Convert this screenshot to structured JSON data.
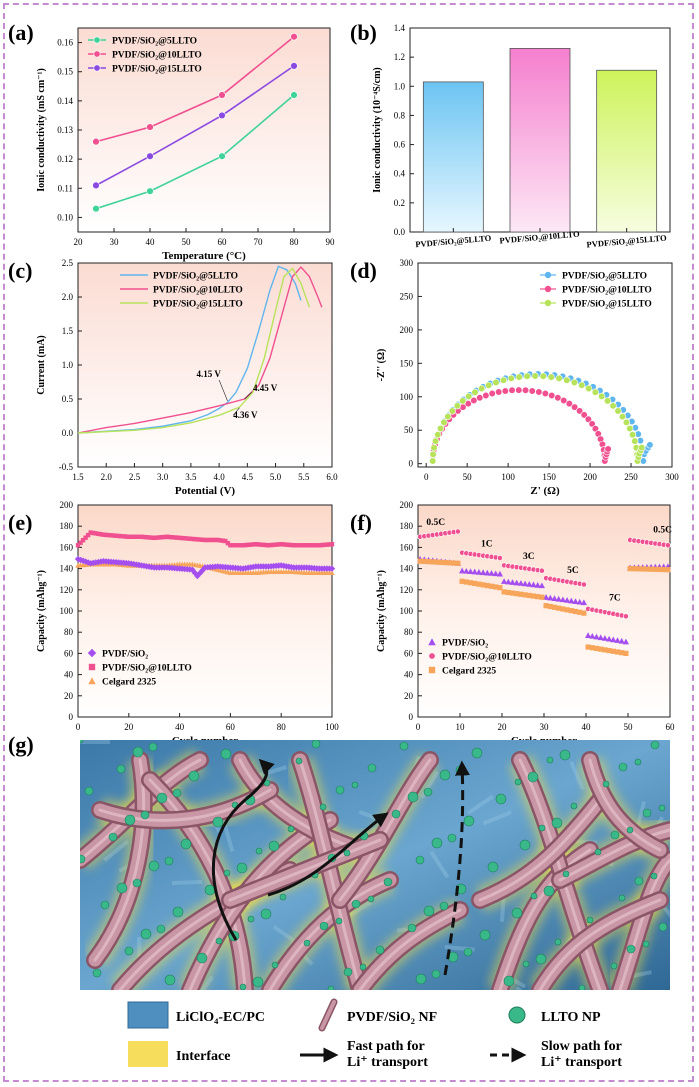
{
  "colors": {
    "frame": "#c58bd1",
    "green": "#3fd39a",
    "pink": "#f0508f",
    "purple": "#8a49e0",
    "blue": "#5fb6ee",
    "lime": "#b7e35a",
    "orange": "#f6a55a",
    "violet": "#a44ef0",
    "bar_blue": "#7ecdf5",
    "bar_pink": "#f99bd6",
    "bar_lime": "#d8f57a"
  },
  "legend": {
    "electrolyte": "LiClO₄-EC/PC",
    "nanofiber": "PVDF/SiO₂ NF",
    "nanoparticle": "LLTO NP",
    "interface": "Interface",
    "fast_path": "Fast path for\nLi⁺ transport",
    "slow_path": "Slow path for\nLi⁺ transport"
  },
  "chart_data": [
    {
      "panel": "(a)",
      "type": "line",
      "xlabel": "Temperature (°C)",
      "ylabel": "Ionic conductivity (mS cm⁻¹)",
      "xlim": [
        20,
        90
      ],
      "ylim": [
        0.095,
        0.165
      ],
      "xticks": [
        20,
        30,
        40,
        50,
        60,
        70,
        80,
        90
      ],
      "yticks": [
        0.1,
        0.11,
        0.12,
        0.13,
        0.14,
        0.15,
        0.16
      ],
      "ytick_decimals": 2,
      "legend_pos": "top-left",
      "series": [
        {
          "name": "PVDF/SiO₂@5LLTO",
          "color": "#3fd39a",
          "marker": "circle",
          "x": [
            25,
            40,
            60,
            80
          ],
          "y": [
            0.103,
            0.109,
            0.121,
            0.142
          ]
        },
        {
          "name": "PVDF/SiO₂@10LLTO",
          "color": "#f0508f",
          "marker": "circle",
          "x": [
            25,
            40,
            60,
            80
          ],
          "y": [
            0.126,
            0.131,
            0.142,
            0.162
          ]
        },
        {
          "name": "PVDF/SiO₂@15LLTO",
          "color": "#8a49e0",
          "marker": "circle",
          "x": [
            25,
            40,
            60,
            80
          ],
          "y": [
            0.111,
            0.121,
            0.135,
            0.152
          ]
        }
      ]
    },
    {
      "panel": "(b)",
      "type": "bar",
      "xlabel": "",
      "ylabel": "Ionic conductivity (10⁻⁴S/cm)",
      "ylim": [
        0,
        1.4
      ],
      "yticks": [
        0.0,
        0.2,
        0.4,
        0.6,
        0.8,
        1.0,
        1.2,
        1.4
      ],
      "ytick_decimals": 1,
      "categories": [
        "PVDF/SiO₂@5LLTO",
        "PVDF/SiO₂@10LLTO",
        "PVDF/SiO₂@15LLTO"
      ],
      "values": [
        1.03,
        1.26,
        1.11
      ],
      "bar_colors": [
        "#7ecdf5",
        "#f99bd6",
        "#d8f57a"
      ]
    },
    {
      "panel": "(c)",
      "type": "line",
      "xlabel": "Potential (V)",
      "ylabel": "Current (mA)",
      "xlim": [
        1.5,
        6.0
      ],
      "ylim": [
        -0.5,
        2.5
      ],
      "xticks": [
        1.5,
        2.0,
        2.5,
        3.0,
        3.5,
        4.0,
        4.5,
        5.0,
        5.5,
        6.0
      ],
      "xtick_decimals": 1,
      "yticks": [
        -0.5,
        0.0,
        0.5,
        1.0,
        1.5,
        2.0,
        2.5
      ],
      "ytick_decimals": 1,
      "legend_pos": "top-left",
      "series": [
        {
          "name": "PVDF/SiO₂@5LLTO",
          "color": "#5fb6ee",
          "x": [
            1.5,
            2.5,
            3.0,
            3.5,
            3.8,
            4.0,
            4.15,
            4.3,
            4.5,
            4.7,
            4.9,
            5.05,
            5.2,
            5.35,
            5.45
          ],
          "y": [
            0.0,
            0.05,
            0.1,
            0.18,
            0.27,
            0.36,
            0.45,
            0.6,
            0.95,
            1.5,
            2.1,
            2.45,
            2.4,
            2.2,
            1.95
          ]
        },
        {
          "name": "PVDF/SiO₂@10LLTO",
          "color": "#f0508f",
          "x": [
            1.5,
            2.0,
            2.5,
            3.0,
            3.5,
            4.0,
            4.45,
            4.7,
            4.9,
            5.1,
            5.3,
            5.45,
            5.6,
            5.75,
            5.82
          ],
          "y": [
            0.0,
            0.08,
            0.14,
            0.22,
            0.3,
            0.4,
            0.5,
            0.7,
            1.1,
            1.7,
            2.3,
            2.44,
            2.3,
            2.0,
            1.85
          ]
        },
        {
          "name": "PVDF/SiO₂@15LLTO",
          "color": "#b7e35a",
          "x": [
            1.5,
            2.5,
            3.0,
            3.5,
            4.0,
            4.36,
            4.6,
            4.8,
            5.0,
            5.15,
            5.3,
            5.45,
            5.6
          ],
          "y": [
            0.0,
            0.04,
            0.08,
            0.15,
            0.26,
            0.38,
            0.6,
            1.1,
            1.8,
            2.3,
            2.42,
            2.2,
            1.85
          ]
        }
      ],
      "annotations": [
        {
          "text": "4.15 V",
          "x": 3.6,
          "y": 0.82
        },
        {
          "text": "4.45 V",
          "x": 4.6,
          "y": 0.62
        },
        {
          "text": "4.36 V",
          "x": 4.25,
          "y": 0.22
        }
      ]
    },
    {
      "panel": "(d)",
      "type": "scatter",
      "xlabel": "Z' (Ω)",
      "ylabel": "-Z'' (Ω)",
      "xlim": [
        -10,
        300
      ],
      "ylim": [
        -5,
        300
      ],
      "xticks": [
        0,
        50,
        100,
        150,
        200,
        250,
        300
      ],
      "yticks": [
        0,
        50,
        100,
        150,
        200,
        250,
        300
      ],
      "legend_pos": "top-right",
      "series": [
        {
          "name": "PVDF/SiO₂@5LLTO",
          "color": "#5fb6ee",
          "semicircle": {
            "start": 8,
            "end": 265,
            "peak": 130
          },
          "tail_x": [
            266,
            268,
            271,
            273
          ],
          "tail_y": [
            14,
            19,
            24,
            28
          ]
        },
        {
          "name": "PVDF/SiO₂@10LLTO",
          "color": "#f0508f",
          "semicircle": {
            "start": 8,
            "end": 218,
            "peak": 106
          },
          "tail_x": [
            219,
            220,
            221,
            222
          ],
          "tail_y": [
            10,
            14,
            18,
            22
          ]
        },
        {
          "name": "PVDF/SiO₂@15LLTO",
          "color": "#b7e35a",
          "semicircle": {
            "start": 8,
            "end": 258,
            "peak": 127
          },
          "tail_x": [
            259,
            260,
            262,
            263
          ],
          "tail_y": [
            10,
            15,
            20,
            24
          ]
        }
      ]
    },
    {
      "panel": "(e)",
      "type": "line",
      "xlabel": "Cycle number",
      "ylabel": "Capacity (mAhg⁻¹)",
      "xlim": [
        0,
        100
      ],
      "ylim": [
        0,
        200
      ],
      "xticks": [
        0,
        20,
        40,
        60,
        80,
        100
      ],
      "yticks": [
        0,
        20,
        40,
        60,
        80,
        100,
        120,
        140,
        160,
        180,
        200
      ],
      "legend_pos": "bottom-left",
      "series": [
        {
          "name": "PVDF/SiO₂",
          "color": "#a44ef0",
          "marker": "diamond",
          "x": [
            0,
            5,
            10,
            15,
            20,
            25,
            30,
            35,
            40,
            45,
            47,
            50,
            55,
            60,
            65,
            70,
            75,
            80,
            85,
            90,
            95,
            100
          ],
          "y": [
            149,
            145,
            147,
            146,
            145,
            143,
            141,
            141,
            140,
            139,
            133,
            141,
            142,
            141,
            140,
            142,
            142,
            143,
            141,
            141,
            140,
            140
          ]
        },
        {
          "name": "PVDF/SiO₂@10LLTO",
          "color": "#f0508f",
          "marker": "square",
          "x": [
            0,
            5,
            10,
            15,
            20,
            25,
            30,
            35,
            40,
            45,
            50,
            55,
            58,
            60,
            65,
            70,
            75,
            80,
            85,
            90,
            95,
            100
          ],
          "y": [
            162,
            174,
            172,
            171,
            170,
            170,
            169,
            170,
            169,
            168,
            167,
            167,
            166,
            162,
            162,
            163,
            162,
            163,
            162,
            162,
            162,
            163
          ]
        },
        {
          "name": "Celgard 2325",
          "color": "#f6a55a",
          "marker": "triangle",
          "x": [
            0,
            5,
            10,
            15,
            20,
            25,
            30,
            35,
            40,
            45,
            50,
            55,
            60,
            65,
            70,
            75,
            80,
            85,
            90,
            95,
            100
          ],
          "y": [
            143,
            144,
            144,
            144,
            143,
            143,
            143,
            143,
            144,
            144,
            142,
            139,
            136,
            136,
            136,
            137,
            137,
            137,
            136,
            136,
            136
          ]
        }
      ]
    },
    {
      "panel": "(f)",
      "type": "scatter",
      "xlabel": "Cycle number",
      "ylabel": "Capacity (mAhg⁻¹)",
      "xlim": [
        0,
        60
      ],
      "ylim": [
        0,
        200
      ],
      "xticks": [
        0,
        10,
        20,
        30,
        40,
        50,
        60
      ],
      "yticks": [
        0,
        20,
        40,
        60,
        80,
        100,
        120,
        140,
        160,
        180,
        200
      ],
      "legend_pos": "bottom-left",
      "rates": [
        {
          "label": "0.5C",
          "x": 2,
          "y": 181
        },
        {
          "label": "1C",
          "x": 15,
          "y": 161
        },
        {
          "label": "3C",
          "x": 25,
          "y": 149
        },
        {
          "label": "5C",
          "x": 35.5,
          "y": 136
        },
        {
          "label": "7C",
          "x": 45.5,
          "y": 110
        },
        {
          "label": "0.5C",
          "x": 56,
          "y": 174
        }
      ],
      "series": [
        {
          "name": "PVDF/SiO₂",
          "color": "#a44ef0",
          "marker": "triangle",
          "segments": [
            [
              0,
              10,
              149,
              145
            ],
            [
              10,
              20,
              138,
              135
            ],
            [
              20,
              30,
              128,
              124
            ],
            [
              30,
              40,
              113,
              108
            ],
            [
              40,
              50,
              77,
              71
            ],
            [
              50,
              60,
              141,
              142
            ]
          ]
        },
        {
          "name": "PVDF/SiO₂@10LLTO",
          "color": "#f0508f",
          "marker": "circle",
          "segments": [
            [
              0,
              10,
              170,
              175
            ],
            [
              10,
              20,
              155,
              150
            ],
            [
              20,
              30,
              143,
              138
            ],
            [
              30,
              40,
              131,
              125
            ],
            [
              40,
              50,
              102,
              95
            ],
            [
              50,
              60,
              167,
              162
            ]
          ]
        },
        {
          "name": "Celgard 2325",
          "color": "#f6a55a",
          "marker": "square",
          "segments": [
            [
              0,
              10,
              147,
              145
            ],
            [
              10,
              20,
              128,
              122
            ],
            [
              20,
              30,
              118,
              113
            ],
            [
              30,
              40,
              105,
              98
            ],
            [
              40,
              50,
              66,
              60
            ],
            [
              50,
              60,
              140,
              139
            ]
          ]
        }
      ]
    }
  ]
}
